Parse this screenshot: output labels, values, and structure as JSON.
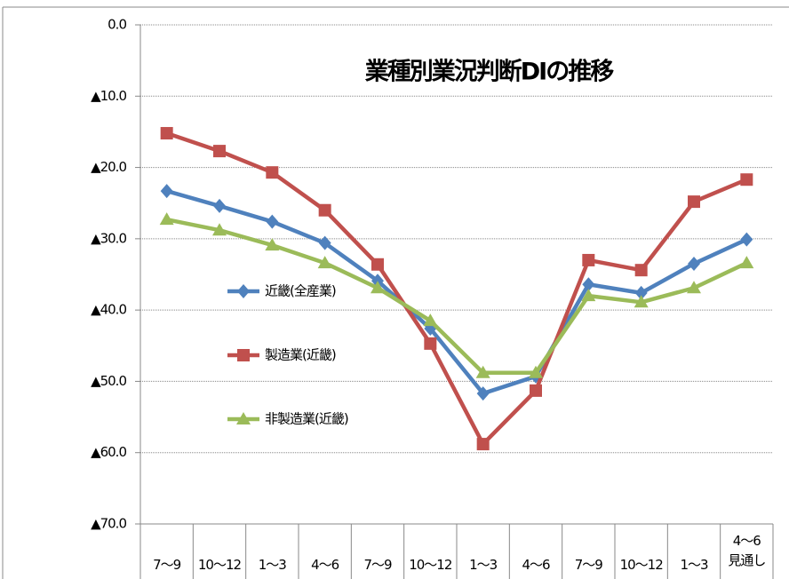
{
  "chart_data": {
    "type": "line",
    "title": "業種別業況判断DIの推移",
    "categories": [
      "7～9",
      "10～12",
      "1～3",
      "4～6",
      "7～9",
      "10～12",
      "1～3",
      "4～6",
      "7～9",
      "10～12",
      "1～3",
      "4～6\n見通し"
    ],
    "series": [
      {
        "name": "近畿(全産業)",
        "color": "#4f81bd",
        "marker": "diamond",
        "values": [
          -23.3,
          -25.4,
          -27.6,
          -30.6,
          -35.9,
          -42.6,
          -51.7,
          -49.3,
          -36.4,
          -37.6,
          -33.5,
          -30.1
        ]
      },
      {
        "name": "製造業(近畿)",
        "color": "#c0504d",
        "marker": "square",
        "values": [
          -15.2,
          -17.7,
          -20.7,
          -26.0,
          -33.6,
          -44.7,
          -58.8,
          -51.3,
          -33.0,
          -34.4,
          -24.8,
          -21.7
        ]
      },
      {
        "name": "非製造業(近畿)",
        "color": "#9bbb59",
        "marker": "triangle",
        "values": [
          -27.3,
          -28.8,
          -30.9,
          -33.4,
          -36.9,
          -41.5,
          -48.8,
          -48.8,
          -38.0,
          -38.9,
          -36.9,
          -33.4
        ]
      }
    ],
    "ylim": [
      -70,
      0
    ],
    "yticks": [
      {
        "value": 0,
        "label": "0.0"
      },
      {
        "value": -10,
        "label": "▲10.0"
      },
      {
        "value": -20,
        "label": "▲20.0"
      },
      {
        "value": -30,
        "label": "▲30.0"
      },
      {
        "value": -40,
        "label": "▲40.0"
      },
      {
        "value": -50,
        "label": "▲50.0"
      },
      {
        "value": -60,
        "label": "▲60.0"
      },
      {
        "value": -70,
        "label": "▲70.0"
      }
    ],
    "grid": true
  }
}
